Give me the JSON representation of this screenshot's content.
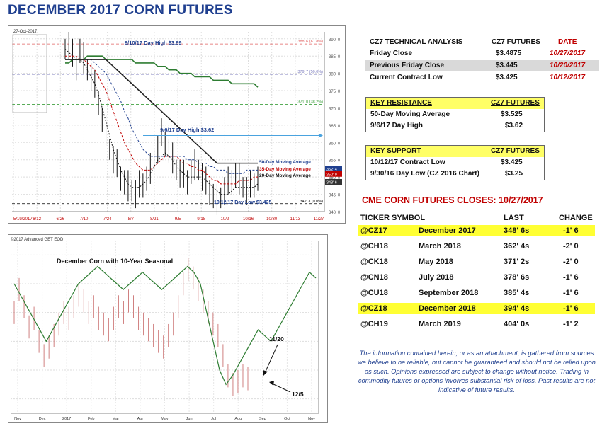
{
  "header": {
    "title": "DECEMBER 2017 CORN FUTURES"
  },
  "tech": {
    "col1": "CZ7 TECHNICAL ANALYSIS",
    "col2": "CZ7 FUTURES",
    "col3": "DATE",
    "rows": [
      {
        "label": "Friday Close",
        "value": "$3.4875",
        "date": "10/27/2017"
      },
      {
        "label": "Previous Friday Close",
        "value": "$3.445",
        "date": "10/20/2017"
      },
      {
        "label": "Current Contract Low",
        "value": "$3.425",
        "date": "10/12/2017"
      }
    ]
  },
  "resistance": {
    "col1": "KEY RESISTANCE",
    "col2": "CZ7 FUTURES",
    "rows": [
      {
        "label": "50-Day Moving Average",
        "value": "$3.525"
      },
      {
        "label": "9/6/17 Day High",
        "value": "$3.62"
      }
    ]
  },
  "support": {
    "col1": "KEY SUPPORT",
    "col2": "CZ7 FUTURES",
    "rows": [
      {
        "label": "10/12/17 Contract Low",
        "value": "$3.425"
      },
      {
        "label": "9/30/16 Day Low (CZ 2016 Chart)",
        "value": "$3.25"
      }
    ]
  },
  "closes": {
    "title": "CME CORN FUTURES CLOSES:  10/27/2017",
    "headers": {
      "ticker": "TICKER SYMBOL",
      "last": "LAST",
      "change": "CHANGE"
    },
    "rows": [
      {
        "ticker": "@CZ17",
        "month": "December 2017",
        "last": "348' 6s",
        "change": "-1' 6",
        "highlight": true
      },
      {
        "ticker": "@CH18",
        "month": "March 2018",
        "last": "362' 4s",
        "change": "-2' 0",
        "highlight": false
      },
      {
        "ticker": "@CK18",
        "month": "May 2018",
        "last": "371' 2s",
        "change": "-2' 0",
        "highlight": false
      },
      {
        "ticker": "@CN18",
        "month": "July 2018",
        "last": "378' 6s",
        "change": "-1' 6",
        "highlight": false
      },
      {
        "ticker": "@CU18",
        "month": "September 2018",
        "last": "385' 4s",
        "change": "-1' 6",
        "highlight": false
      },
      {
        "ticker": "@CZ18",
        "month": "December 2018",
        "last": "394' 4s",
        "change": "-1' 6",
        "highlight": true
      },
      {
        "ticker": "@CH19",
        "month": "March 2019",
        "last": "404' 0s",
        "change": "-1' 2",
        "highlight": false
      }
    ]
  },
  "disclaimer": "The information contained herein, or as an attachment, is gathered from sources we believe to be reliable, but cannot be guaranteed and should not be relied upon as such. Opinions expressed are subject to change without notice. Trading in commodity futures or options involves substantial risk of loss. Past results are not indicative of future results.",
  "chart_data": [
    {
      "type": "line",
      "x_labels": [
        "5/19/2017",
        "6/12",
        "6/26",
        "7/10",
        "7/24",
        "8/7",
        "8/21",
        "9/5",
        "9/18",
        "10/2",
        "10/16",
        "10/30",
        "11/13",
        "11/27"
      ],
      "y_ticks": [
        340,
        345,
        350,
        355,
        360,
        365,
        370,
        375,
        380,
        385,
        390
      ],
      "ylim": [
        340,
        392
      ],
      "grid": true,
      "header_text": "27-Oct-2017",
      "annotations": [
        {
          "text": "8/10/17 Day High $3.89",
          "color": "#1f3f8f"
        },
        {
          "text": "9/6/17 Day High $3.62",
          "color": "#1f3f8f"
        },
        {
          "text": "50-Day Moving Average",
          "color": "#1f3f8f"
        },
        {
          "text": "35-Day Moving Average",
          "color": "#c00000"
        },
        {
          "text": "20-Day Moving Average",
          "color": "#111111"
        },
        {
          "text": "10/12/17 Day Low $3.425",
          "color": "#1f3f8f"
        }
      ],
      "levels": [
        {
          "value": 388.5,
          "label": "388' 6 (61.8%)",
          "color": "#e06060"
        },
        {
          "value": 379.7,
          "label": "379' 7 (50.0%)",
          "color": "#8080c0"
        },
        {
          "value": 371.0,
          "label": "371' 0 (38.2%)",
          "color": "#40a040"
        },
        {
          "value": 342.3,
          "label": "342' 3 (0.0%)",
          "color": "#000000"
        }
      ],
      "price_tags": [
        {
          "value": 352.4,
          "label": "352' 4",
          "color": "#1f3f8f"
        },
        {
          "value": 350.9,
          "label": "350' 9",
          "color": "#c00000"
        },
        {
          "value": 348.6,
          "label": "348' 6",
          "color": "#333333"
        }
      ],
      "series": [
        {
          "name": "Price bars",
          "values": [
            387,
            388,
            385,
            382,
            386,
            384,
            381,
            379,
            376,
            372,
            366,
            363,
            358,
            355,
            353,
            350,
            348,
            347,
            346,
            345,
            347,
            348,
            349,
            352,
            355,
            358,
            362,
            360,
            357,
            355,
            352,
            351,
            350,
            349,
            351,
            353,
            352,
            350,
            348,
            346,
            344,
            343,
            344,
            346,
            348,
            349,
            350,
            349,
            347,
            346,
            347,
            348,
            349
          ]
        },
        {
          "name": "20-Day Moving Average",
          "values": [
            387,
            386,
            385,
            384,
            384,
            383,
            381,
            379,
            377,
            374,
            370,
            366,
            362,
            358,
            355,
            352,
            350,
            348,
            347,
            347,
            347,
            348,
            349,
            351,
            353,
            355,
            356,
            357,
            356,
            355,
            353,
            352,
            351,
            350,
            350,
            350,
            350,
            350,
            349,
            348,
            347,
            346,
            345,
            345,
            345,
            346,
            347,
            347,
            347,
            347,
            347,
            347,
            348
          ]
        },
        {
          "name": "35-Day Moving Average",
          "values": [
            385,
            385,
            385,
            385,
            384,
            384,
            383,
            382,
            381,
            379,
            377,
            375,
            372,
            369,
            366,
            363,
            360,
            358,
            356,
            354,
            353,
            352,
            352,
            352,
            353,
            354,
            355,
            356,
            356,
            356,
            356,
            355,
            354,
            354,
            353,
            353,
            352,
            352,
            351,
            350,
            349,
            349,
            348,
            348,
            348,
            348,
            348,
            349,
            349,
            349,
            349,
            350,
            350
          ]
        },
        {
          "name": "50-Day Moving Average",
          "values": [
            384,
            384,
            384,
            384,
            384,
            384,
            384,
            384,
            383,
            382,
            381,
            380,
            378,
            376,
            374,
            372,
            369,
            367,
            364,
            362,
            360,
            358,
            357,
            356,
            356,
            356,
            356,
            356,
            356,
            356,
            356,
            356,
            356,
            355,
            355,
            355,
            354,
            354,
            354,
            353,
            353,
            352,
            352,
            352,
            351,
            351,
            351,
            351,
            351,
            352,
            352,
            352,
            352
          ]
        },
        {
          "name": "100-Day Moving Average",
          "values": [
            383,
            383,
            384,
            384,
            384,
            384,
            385,
            385,
            385,
            385,
            385,
            384,
            384,
            384,
            384,
            384,
            384,
            384,
            384,
            383,
            383,
            383,
            383,
            383,
            383,
            382,
            382,
            382,
            381,
            381,
            381,
            380,
            380,
            380,
            380,
            379,
            379,
            379,
            379,
            379,
            378,
            378,
            378,
            378,
            378,
            377,
            377,
            377,
            377,
            377,
            377,
            377,
            376
          ]
        },
        {
          "name": "200-Day Moving Average",
          "values": [
            384,
            384,
            384,
            384,
            384,
            384,
            384,
            384,
            384,
            384,
            384,
            384,
            383,
            382,
            381,
            380,
            379,
            378,
            377,
            376,
            375,
            374,
            373,
            372,
            371,
            370,
            369,
            368,
            367,
            366,
            365,
            364,
            363,
            362,
            361,
            360,
            359,
            358,
            357,
            356,
            355,
            354,
            354,
            354,
            354,
            354,
            354,
            354,
            354,
            354,
            354,
            354,
            354
          ]
        }
      ]
    },
    {
      "type": "line",
      "title": "December Corn with 10-Year Seasonal",
      "header_text": "©2017 Advanced GET EOD",
      "x_labels": [
        "Nov",
        "Dec",
        "2017",
        "Feb",
        "Mar",
        "Apr",
        "May",
        "Jun",
        "Jul",
        "Aug",
        "Sep",
        "Oct",
        "Nov"
      ],
      "annotations": [
        {
          "text": "11/20"
        },
        {
          "text": "12/5"
        }
      ],
      "series": [
        {
          "name": "Price bars",
          "values": [
            370,
            378,
            372,
            365,
            368,
            360,
            355,
            358,
            362,
            366,
            370,
            368,
            372,
            376,
            374,
            370,
            372,
            368,
            366,
            364,
            368,
            372,
            370,
            374,
            372,
            368,
            366,
            364,
            362,
            360,
            358,
            362,
            366,
            372,
            380,
            385,
            382,
            378,
            374,
            370,
            366,
            362,
            355,
            348,
            345,
            346,
            348,
            347
          ]
        },
        {
          "name": "10-Year Seasonal",
          "values": [
            380,
            376,
            372,
            368,
            364,
            360,
            364,
            368,
            372,
            376,
            380,
            382,
            384,
            386,
            384,
            382,
            380,
            378,
            380,
            382,
            384,
            382,
            380,
            378,
            380,
            382,
            384,
            386,
            384,
            380,
            370,
            360,
            350,
            345,
            348,
            352,
            356,
            360,
            364,
            362,
            360,
            364,
            368,
            372,
            376,
            380,
            384,
            382
          ]
        }
      ]
    }
  ]
}
